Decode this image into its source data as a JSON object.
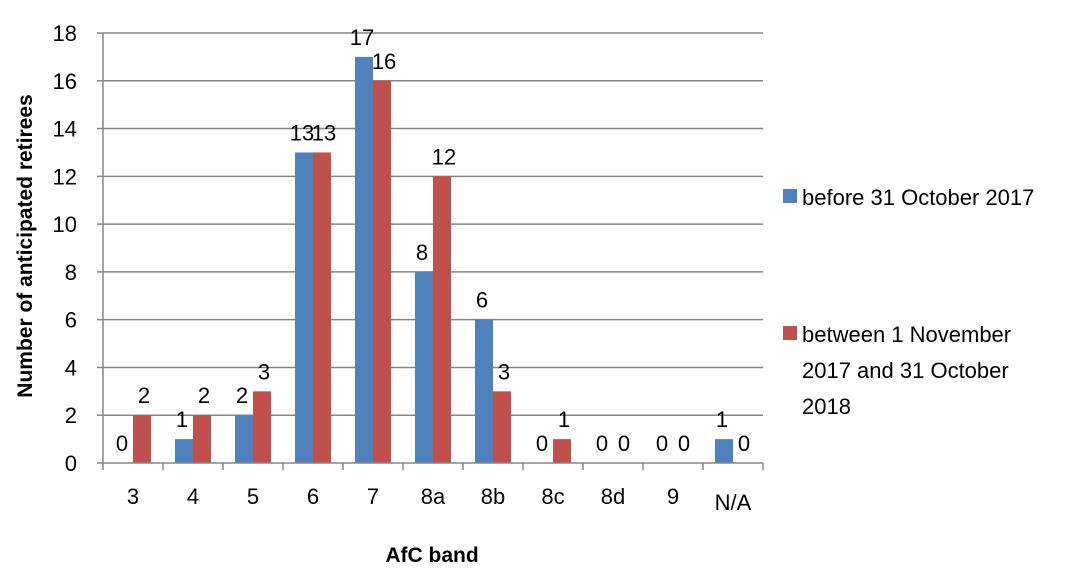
{
  "chart_data": {
    "type": "bar",
    "title": "",
    "xlabel": "AfC band",
    "ylabel": "Number of anticipated retirees",
    "ylim": [
      0,
      18
    ],
    "y_ticks": [
      "0",
      "2",
      "4",
      "6",
      "8",
      "10",
      "12",
      "14",
      "16",
      "18"
    ],
    "grid": true,
    "legend_position": "right",
    "categories": [
      "3",
      "4",
      "5",
      "6",
      "7",
      "8a",
      "8b",
      "8c",
      "8d",
      "9",
      "N/A"
    ],
    "series": [
      {
        "name": "before 31 October 2017",
        "color": "#4F81BD",
        "values": [
          0,
          1,
          2,
          13,
          17,
          8,
          6,
          0,
          0,
          0,
          1
        ]
      },
      {
        "name": "between 1 November 2017 and 31 October 2018",
        "color": "#C0504D",
        "values": [
          2,
          2,
          3,
          13,
          16,
          12,
          3,
          1,
          0,
          0,
          0
        ]
      }
    ],
    "legend_lines": [
      [
        "before 31 October 2017"
      ],
      [
        "between 1 November",
        "2017 and 31 October",
        "2018"
      ]
    ]
  }
}
